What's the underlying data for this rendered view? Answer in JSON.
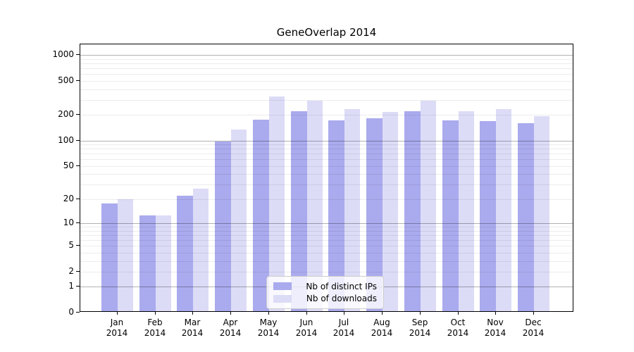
{
  "title": "GeneOverlap 2014",
  "legend": {
    "items": [
      {
        "label": "Nb of distinct IPs",
        "color": "#aaaaee"
      },
      {
        "label": "Nb of downloads",
        "color": "#dcdcf7"
      }
    ]
  },
  "y_axis": {
    "tick_values": [
      0,
      1,
      2,
      5,
      10,
      20,
      50,
      100,
      200,
      500,
      1000
    ],
    "major_gridlines": [
      1,
      10,
      100,
      1000
    ]
  },
  "x_axis": {
    "months": [
      "Jan",
      "Feb",
      "Mar",
      "Apr",
      "May",
      "Jun",
      "Jul",
      "Aug",
      "Sep",
      "Oct",
      "Nov",
      "Dec"
    ],
    "year": "2014"
  },
  "chart_data": {
    "type": "bar",
    "title": "GeneOverlap 2014",
    "categories": [
      "Jan 2014",
      "Feb 2014",
      "Mar 2014",
      "Apr 2014",
      "May 2014",
      "Jun 2014",
      "Jul 2014",
      "Aug 2014",
      "Sep 2014",
      "Oct 2014",
      "Nov 2014",
      "Dec 2014"
    ],
    "series": [
      {
        "name": "Nb of distinct IPs",
        "color": "#aaaaee",
        "values": [
          17,
          12,
          21,
          93,
          168,
          213,
          166,
          176,
          214,
          167,
          163,
          155
        ]
      },
      {
        "name": "Nb of downloads",
        "color": "#dcdcf7",
        "values": [
          19,
          12,
          26,
          131,
          317,
          283,
          226,
          210,
          281,
          213,
          224,
          185
        ]
      }
    ],
    "yscale": "log1p",
    "y_ticks": [
      0,
      1,
      2,
      5,
      10,
      20,
      50,
      100,
      200,
      500,
      1000
    ],
    "ylim": [
      0,
      1320
    ],
    "grid": true,
    "legend_position": "lower center"
  },
  "colors": {
    "ips_bar": "#aaaaee",
    "downloads_bar": "#dcdcf7",
    "grid_major": "rgba(0,0,0,0.30)",
    "grid_minor": "rgba(0,0,0,0.075)",
    "axis": "#000000",
    "background": "#ffffff"
  }
}
